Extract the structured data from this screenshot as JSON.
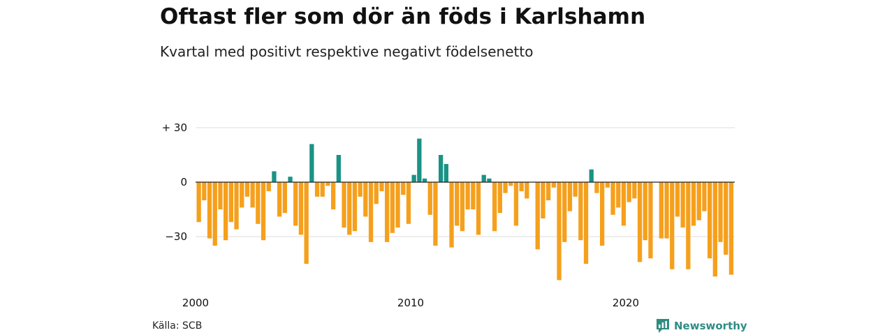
{
  "title": "Oftast fler som dör än föds i Karlshamn",
  "subtitle": "Kvartal med positivt respektive negativt födelsenetto",
  "source": "Källa: SCB",
  "brand": {
    "name": "Newsworthy",
    "icon": "newsworthy-logo-icon"
  },
  "colors": {
    "positive": "#1a9386",
    "negative": "#f5a01d",
    "grid": "#dddddd",
    "zero_line": "#222222"
  },
  "chart_data": {
    "type": "bar",
    "title": "Oftast fler som dör än föds i Karlshamn",
    "subtitle": "Kvartal med positivt respektive negativt födelsenetto",
    "ylim": [
      -55,
      32
    ],
    "grid": true,
    "y_ticks": [
      {
        "value": 30,
        "label": "+ 30"
      },
      {
        "value": 0,
        "label": "0"
      },
      {
        "value": -30,
        "label": "−30"
      }
    ],
    "x_ticks": [
      {
        "value": 2000,
        "label": "2000"
      },
      {
        "value": 2010,
        "label": "2010"
      },
      {
        "value": 2020,
        "label": "2020"
      }
    ],
    "start_year": 2000,
    "periods_per_year": 4,
    "values": [
      -22,
      -10,
      -31,
      -35,
      -15,
      -32,
      -22,
      -26,
      -14,
      -8,
      -14,
      -23,
      -32,
      -5,
      6,
      -19,
      -17,
      3,
      -24,
      -29,
      -45,
      21,
      -8,
      -8,
      -2,
      -15,
      15,
      -25,
      -29,
      -27,
      -8,
      -19,
      -33,
      -12,
      -5,
      -33,
      -28,
      -25,
      -7,
      -23,
      4,
      24,
      2,
      -18,
      -35,
      15,
      10,
      -36,
      -24,
      -27,
      -15,
      -15,
      -29,
      4,
      2,
      -27,
      -17,
      -6,
      -2,
      -24,
      -5,
      -9,
      0,
      -37,
      -20,
      -10,
      -3,
      -54,
      -33,
      -16,
      -8,
      -32,
      -45,
      7,
      -6,
      -35,
      -3,
      -18,
      -14,
      -24,
      -11,
      -9,
      -44,
      -32,
      -42,
      0,
      -31,
      -31,
      -48,
      -19,
      -25,
      -48,
      -24,
      -21,
      -16,
      -42,
      -52,
      -33,
      -40,
      -51
    ]
  }
}
